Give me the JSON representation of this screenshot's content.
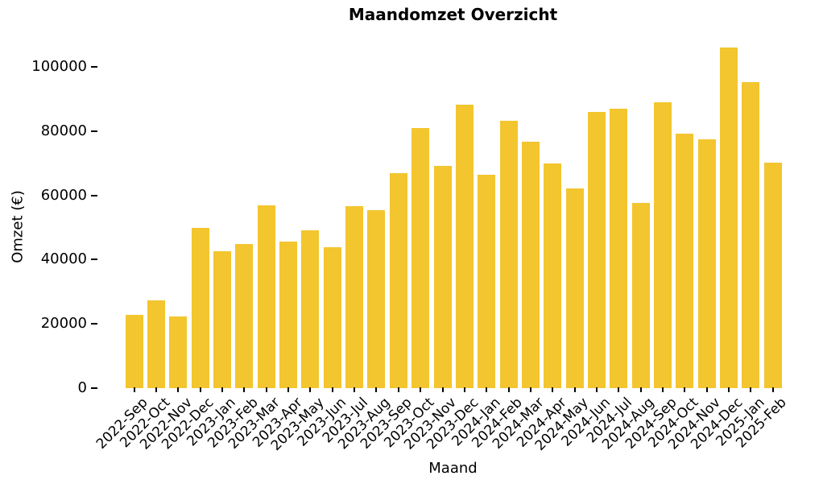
{
  "chart_data": {
    "type": "bar",
    "title": "Maandomzet Overzicht",
    "xlabel": "Maand",
    "ylabel": "Omzet (€)",
    "categories": [
      "2022-Sep",
      "2022-Oct",
      "2022-Nov",
      "2022-Dec",
      "2023-Jan",
      "2023-Feb",
      "2023-Mar",
      "2023-Apr",
      "2023-May",
      "2023-Jun",
      "2023-Jul",
      "2023-Aug",
      "2023-Sep",
      "2023-Oct",
      "2023-Nov",
      "2023-Dec",
      "2024-Jan",
      "2024-Feb",
      "2024-Mar",
      "2024-Apr",
      "2024-May",
      "2024-Jun",
      "2024-Jul",
      "2024-Aug",
      "2024-Sep",
      "2024-Oct",
      "2024-Nov",
      "2024-Dec",
      "2025-Jan",
      "2025-Feb"
    ],
    "values": [
      22800,
      27400,
      22300,
      50000,
      42500,
      44800,
      56900,
      45600,
      49000,
      43800,
      56700,
      55500,
      66900,
      80900,
      69100,
      88200,
      66300,
      83100,
      76700,
      70000,
      62100,
      85900,
      87000,
      57700,
      88900,
      79100,
      77400,
      105900,
      95200,
      70100
    ],
    "yticks": [
      0,
      20000,
      40000,
      60000,
      80000,
      100000
    ],
    "ylim": [
      0,
      110000
    ],
    "bar_color": "#F3C52F",
    "grid": false,
    "legend_position": "none",
    "x_tick_rotation_deg": 45
  }
}
